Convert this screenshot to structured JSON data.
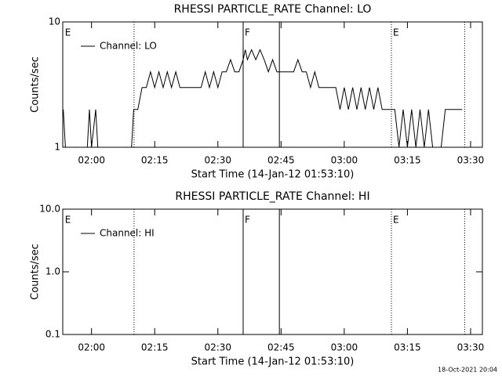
{
  "chart_data": [
    {
      "type": "line",
      "title": "RHESSI PARTICLE_RATE Channel: LO",
      "xlabel": "Start Time (14-Jan-12 01:53:10)",
      "ylabel": "Counts/sec",
      "log_y": true,
      "ylim": [
        1,
        10
      ],
      "yticks": [
        1,
        10
      ],
      "xlim": [
        113.17,
        212.8
      ],
      "xticks": [
        {
          "value": 120,
          "label": "02:00"
        },
        {
          "value": 135,
          "label": "02:15"
        },
        {
          "value": 150,
          "label": "02:30"
        },
        {
          "value": 165,
          "label": "02:45"
        },
        {
          "value": 180,
          "label": "03:00"
        },
        {
          "value": 195,
          "label": "03:15"
        },
        {
          "value": 210,
          "label": "03:30"
        }
      ],
      "vlines": [
        {
          "x": 130.1,
          "style": "dotted"
        },
        {
          "x": 156.0,
          "style": "solid"
        },
        {
          "x": 164.6,
          "style": "solid"
        },
        {
          "x": 191.2,
          "style": "dotted"
        },
        {
          "x": 208.6,
          "style": "dotted"
        }
      ],
      "annotations": [
        {
          "x": 113.3,
          "label": "E"
        },
        {
          "x": 156.0,
          "label": "F"
        },
        {
          "x": 191.2,
          "label": "E"
        }
      ],
      "legend": "upper left",
      "series": [
        {
          "name": "Channel: LO",
          "color": "#000000",
          "x": [
            113.3,
            113.8,
            114.0,
            119.0,
            119.5,
            120.0,
            121.0,
            121.5,
            122.0,
            129.5,
            130,
            131,
            132,
            133,
            134,
            135,
            136,
            137,
            138,
            139,
            140,
            141,
            142,
            144,
            146,
            147,
            148,
            149,
            150,
            151,
            152,
            153,
            154,
            155,
            156,
            156.5,
            157,
            158,
            159,
            160,
            161,
            162,
            163,
            164,
            166,
            168,
            169,
            170,
            171,
            172,
            173,
            174,
            176,
            178,
            179,
            180,
            181,
            182,
            183,
            184,
            185,
            186,
            187,
            188,
            189,
            190,
            191,
            192,
            193,
            194,
            195,
            196,
            197,
            198,
            199,
            200,
            201,
            203,
            204,
            205,
            208
          ],
          "values": [
            2,
            1,
            null,
            1,
            2,
            1,
            2,
            1,
            null,
            1,
            2,
            2,
            3,
            3,
            4,
            3,
            4,
            3,
            4,
            3,
            4,
            3,
            3,
            3,
            3,
            4,
            3,
            4,
            3,
            4,
            4,
            5,
            4,
            4,
            5,
            6,
            5,
            6,
            5,
            6,
            5,
            4,
            5,
            4,
            4,
            4,
            5,
            4,
            4,
            3,
            4,
            3,
            3,
            3,
            2,
            3,
            2,
            3,
            2,
            3,
            2,
            3,
            2,
            3,
            2,
            2,
            2,
            2,
            1,
            2,
            1,
            2,
            1,
            2,
            1,
            2,
            1,
            1,
            2,
            2,
            2
          ]
        }
      ]
    },
    {
      "type": "line",
      "title": "RHESSI PARTICLE_RATE Channel: HI",
      "xlabel": "Start Time (14-Jan-12 01:53:10)",
      "ylabel": "Counts/sec",
      "log_y": true,
      "ylim": [
        0.1,
        10
      ],
      "yticks": [
        0.1,
        {
          "value": 1,
          "label": "1.0"
        },
        {
          "value": 10,
          "label": "10.0"
        }
      ],
      "xlim": [
        113.17,
        212.8
      ],
      "xticks": [
        {
          "value": 120,
          "label": "02:00"
        },
        {
          "value": 135,
          "label": "02:15"
        },
        {
          "value": 150,
          "label": "02:30"
        },
        {
          "value": 165,
          "label": "02:45"
        },
        {
          "value": 180,
          "label": "03:00"
        },
        {
          "value": 195,
          "label": "03:15"
        },
        {
          "value": 210,
          "label": "03:30"
        }
      ],
      "vlines": [
        {
          "x": 130.1,
          "style": "dotted"
        },
        {
          "x": 156.0,
          "style": "solid"
        },
        {
          "x": 164.6,
          "style": "solid"
        },
        {
          "x": 191.2,
          "style": "dotted"
        },
        {
          "x": 208.6,
          "style": "dotted"
        }
      ],
      "annotations": [
        {
          "x": 113.3,
          "label": "E"
        },
        {
          "x": 156.0,
          "label": "F"
        },
        {
          "x": 191.2,
          "label": "E"
        }
      ],
      "legend": "upper left",
      "series": [
        {
          "name": "Channel: HI",
          "color": "#000000",
          "x": [],
          "values": []
        }
      ]
    }
  ],
  "footer": "18-Oct-2021 20:04"
}
